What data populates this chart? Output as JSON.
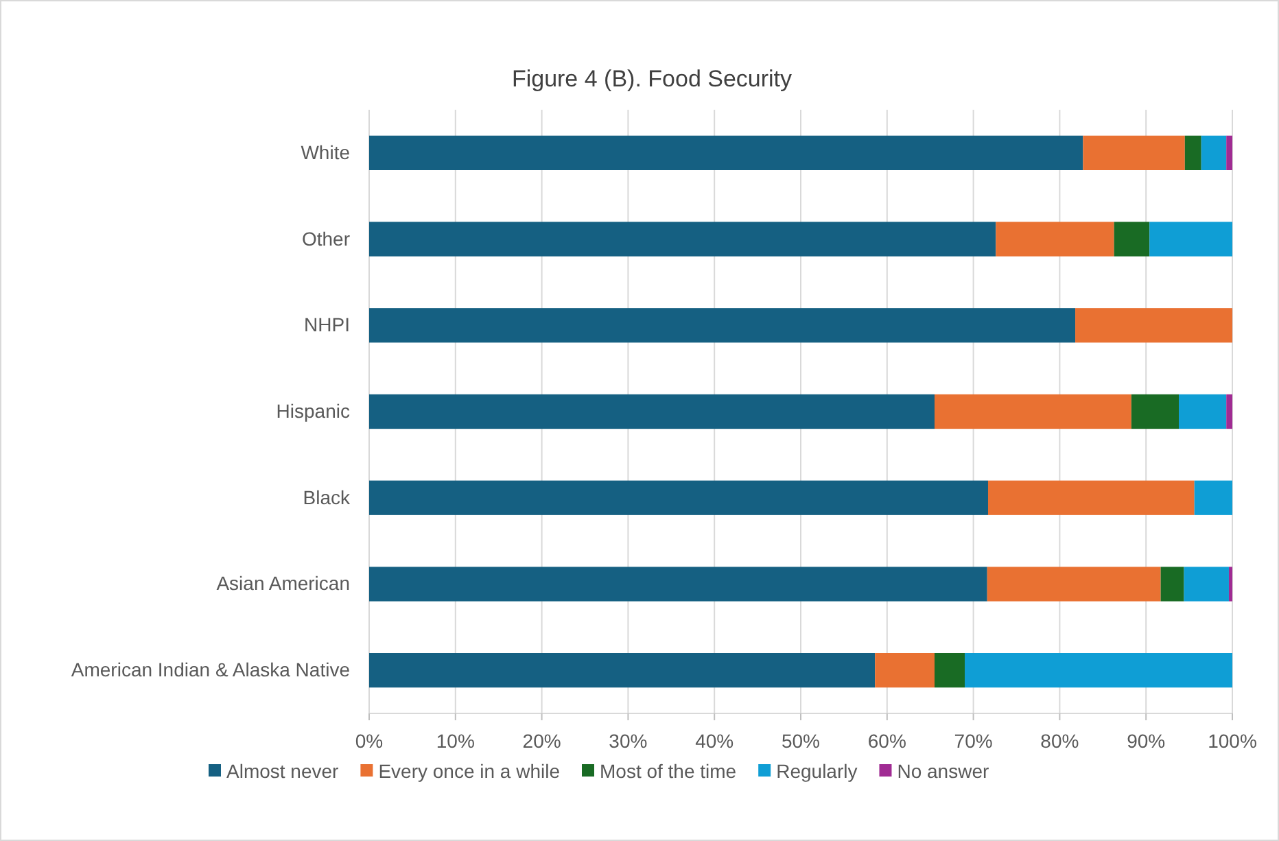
{
  "chart_data": {
    "type": "bar",
    "orientation": "horizontal",
    "stacked": true,
    "title": "Figure 4 (B). Food Security",
    "categories": [
      "White",
      "Other",
      "NHPI",
      "Hispanic",
      "Black",
      "Asian American",
      "American Indian & Alaska Native"
    ],
    "series": [
      {
        "name": "Almost never",
        "color": "#156082",
        "values": [
          82.7,
          72.6,
          81.8,
          65.5,
          71.7,
          71.6,
          58.6
        ]
      },
      {
        "name": "Every once in a while",
        "color": "#e97132",
        "values": [
          11.8,
          13.7,
          18.2,
          22.8,
          23.9,
          20.1,
          6.9
        ]
      },
      {
        "name": "Most of the time",
        "color": "#196b24",
        "values": [
          1.9,
          4.1,
          0,
          5.5,
          0,
          2.7,
          3.5
        ]
      },
      {
        "name": "Regularly",
        "color": "#0f9ed5",
        "values": [
          2.9,
          9.6,
          0,
          5.5,
          4.4,
          5.2,
          31.0
        ]
      },
      {
        "name": "No answer",
        "color": "#a02b93",
        "values": [
          0.7,
          0,
          0,
          0.7,
          0,
          0.4,
          0
        ]
      }
    ],
    "xlim": [
      0,
      100
    ],
    "xticks": [
      {
        "value": 0,
        "label": "0%"
      },
      {
        "value": 10,
        "label": "10%"
      },
      {
        "value": 20,
        "label": "20%"
      },
      {
        "value": 30,
        "label": "30%"
      },
      {
        "value": 40,
        "label": "40%"
      },
      {
        "value": 50,
        "label": "50%"
      },
      {
        "value": 60,
        "label": "60%"
      },
      {
        "value": 70,
        "label": "70%"
      },
      {
        "value": 80,
        "label": "80%"
      },
      {
        "value": 90,
        "label": "90%"
      },
      {
        "value": 100,
        "label": "100%"
      }
    ],
    "grid": "x",
    "legend": "bottom"
  }
}
